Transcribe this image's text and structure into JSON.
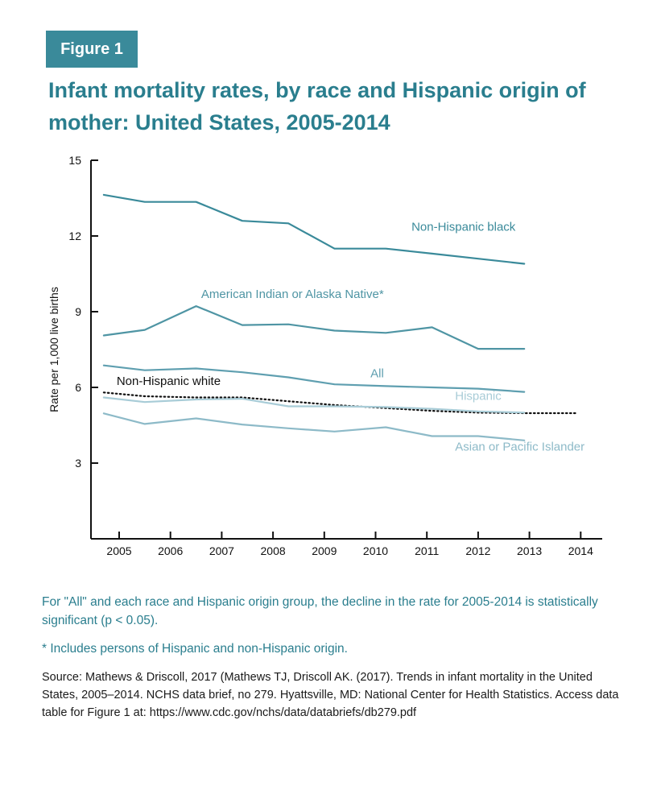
{
  "figure_label": "Figure 1",
  "title": "Infant mortality rates, by race and Hispanic origin of mother: United States, 2005-2014",
  "notes": {
    "significance": "For \"All\" and each race and Hispanic origin group, the decline in the rate for 2005-2014 is statistically significant (p < 0.05).",
    "footnote": "* Includes persons of Hispanic and non-Hispanic origin.",
    "source": "Source: Mathews & Driscoll, 2017 (Mathews TJ, Driscoll AK. (2017). Trends in infant mortality in the United States, 2005–2014. NCHS data brief, no 279. Hyattsville, MD: National Center for Health Statistics. Access data table for Figure 1 at: https://www.cdc.gov/nchs/data/databriefs/db279.pdf"
  },
  "colors": {
    "accent": "#2a7e8e",
    "badge": "#3a8a9a",
    "axis": "#111111"
  },
  "chart_data": {
    "type": "line",
    "title": "Infant mortality rates, by race and Hispanic origin of mother: United States, 2005-2014",
    "xlabel": "",
    "ylabel": "Rate per 1,000 live births",
    "ylim": [
      0,
      15
    ],
    "yticks": [
      3,
      6,
      9,
      12,
      15
    ],
    "x": [
      "2005",
      "2006",
      "2007",
      "2008",
      "2009",
      "2010",
      "2011",
      "2012",
      "2013",
      "2014"
    ],
    "grid": false,
    "series": [
      {
        "name": "Non-Hispanic black",
        "color": "#3a8a9a",
        "style": "solid",
        "x": [
          2004.7,
          2005.5,
          2006.5,
          2007.4,
          2008.3,
          2009.2,
          2010.2,
          2011.1,
          2012.0,
          2012.9
        ],
        "values": [
          13.63,
          13.35,
          13.35,
          12.6,
          12.5,
          11.5,
          11.5,
          11.3,
          11.1,
          10.9
        ]
      },
      {
        "name": "American Indian or Alaska Native*",
        "color": "#4f95a4",
        "style": "solid",
        "x": [
          2004.7,
          2005.5,
          2006.5,
          2007.4,
          2008.3,
          2009.2,
          2010.2,
          2011.1,
          2012.0,
          2012.9
        ],
        "values": [
          8.06,
          8.28,
          9.22,
          8.47,
          8.5,
          8.25,
          8.16,
          8.38,
          7.53,
          7.53
        ]
      },
      {
        "name": "All",
        "color": "#5f9fb0",
        "style": "solid",
        "x": [
          2004.7,
          2005.5,
          2006.5,
          2007.4,
          2008.3,
          2009.2,
          2010.2,
          2011.1,
          2012.0,
          2012.9
        ],
        "values": [
          6.87,
          6.68,
          6.75,
          6.6,
          6.4,
          6.12,
          6.05,
          6.0,
          5.95,
          5.82
        ]
      },
      {
        "name": "Non-Hispanic white",
        "color": "#111111",
        "style": "dotted",
        "x": [
          2004.7,
          2005.5,
          2006.5,
          2007.4,
          2008.3,
          2009.2,
          2010.2,
          2011.1,
          2012.0,
          2012.9,
          2013.9
        ],
        "values": [
          5.8,
          5.65,
          5.6,
          5.6,
          5.45,
          5.3,
          5.18,
          5.07,
          5.0,
          4.98,
          4.98
        ]
      },
      {
        "name": "Hispanic",
        "color": "#a8ccd7",
        "style": "solid",
        "x": [
          2004.7,
          2005.5,
          2006.5,
          2007.4,
          2008.3,
          2009.2,
          2010.2,
          2011.1,
          2012.0,
          2012.9
        ],
        "values": [
          5.6,
          5.42,
          5.52,
          5.55,
          5.25,
          5.25,
          5.22,
          5.15,
          5.05,
          5.0
        ]
      },
      {
        "name": "Asian or Pacific Islander",
        "color": "#8dbac8",
        "style": "solid",
        "x": [
          2004.7,
          2005.5,
          2006.5,
          2007.4,
          2008.3,
          2009.2,
          2010.2,
          2011.1,
          2012.0,
          2012.9
        ],
        "values": [
          4.97,
          4.55,
          4.77,
          4.53,
          4.38,
          4.25,
          4.42,
          4.07,
          4.07,
          3.9
        ]
      }
    ],
    "labels": [
      {
        "text": "Non-Hispanic black",
        "series": "Non-Hispanic black",
        "at": [
          2010.7,
          12.2
        ],
        "color": "#3a8a9a"
      },
      {
        "text": "American Indian or Alaska Native*",
        "series": "American Indian or Alaska Native*",
        "at": [
          2006.6,
          9.55
        ],
        "color": "#4f95a4"
      },
      {
        "text": "All",
        "series": "All",
        "at": [
          2009.9,
          6.4
        ],
        "color": "#5f9fb0"
      },
      {
        "text": "Non-Hispanic white",
        "series": "Non-Hispanic white",
        "at": [
          2004.95,
          6.1
        ],
        "color": "#111111"
      },
      {
        "text": "Hispanic",
        "series": "Hispanic",
        "at": [
          2011.55,
          5.5
        ],
        "color": "#a8ccd7"
      },
      {
        "text": "Asian or Pacific Islander",
        "series": "Asian or Pacific Islander",
        "at": [
          2011.55,
          3.5
        ],
        "color": "#8dbac8"
      }
    ]
  }
}
